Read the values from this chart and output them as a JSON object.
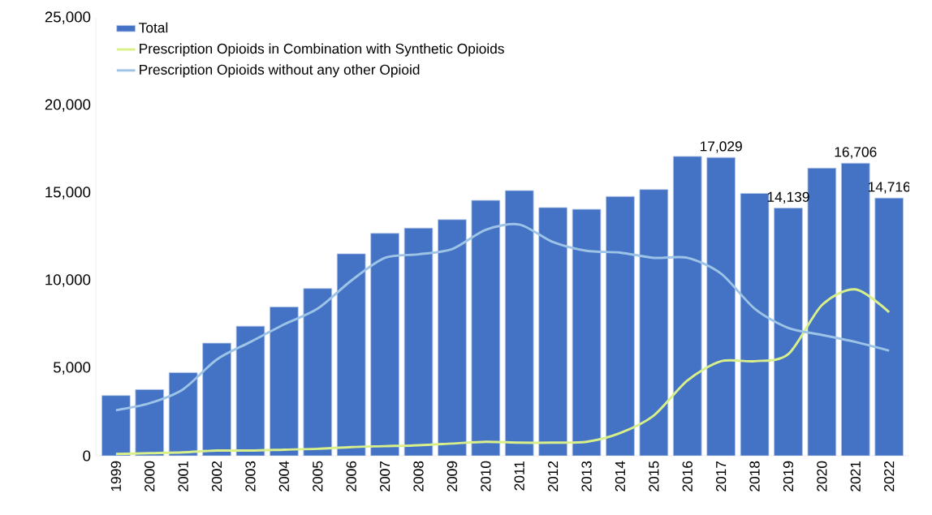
{
  "chart_data": {
    "type": "bar",
    "categories": [
      "1999",
      "2000",
      "2001",
      "2002",
      "2003",
      "2004",
      "2005",
      "2006",
      "2007",
      "2008",
      "2009",
      "2010",
      "2011",
      "2012",
      "2013",
      "2014",
      "2015",
      "2016",
      "2017",
      "2018",
      "2019",
      "2020",
      "2021",
      "2022"
    ],
    "series": [
      {
        "name": "Total",
        "color": "#4472c4",
        "values": [
          3440,
          3780,
          4750,
          6430,
          7400,
          8500,
          9550,
          11530,
          12700,
          13000,
          13480,
          14580,
          15140,
          14170,
          14070,
          14800,
          15200,
          17090,
          17029,
          14980,
          14139,
          16420,
          16706,
          14716
        ],
        "value_labels": [
          null,
          null,
          null,
          null,
          null,
          null,
          null,
          null,
          null,
          null,
          null,
          null,
          null,
          null,
          null,
          null,
          null,
          null,
          "17,029",
          null,
          "14,139",
          null,
          "16,706",
          "14,716"
        ]
      },
      {
        "name": "Prescription Opioids in Combination with Synthetic Opioids",
        "type": "line",
        "color": "#d9f08a",
        "values": [
          100,
          150,
          200,
          300,
          300,
          350,
          400,
          500,
          550,
          600,
          700,
          800,
          750,
          750,
          800,
          1300,
          2300,
          4300,
          5400,
          5400,
          5800,
          8600,
          9500,
          8200
        ]
      },
      {
        "name": "Prescription Opioids without any other Opioid",
        "type": "line",
        "color": "#9dc3e6",
        "values": [
          2600,
          3000,
          3800,
          5500,
          6500,
          7500,
          8400,
          10000,
          11300,
          11500,
          11800,
          12900,
          13200,
          12200,
          11700,
          11600,
          11300,
          11300,
          10400,
          8400,
          7300,
          6900,
          6500,
          6000
        ]
      }
    ],
    "ylim": [
      0,
      25000
    ],
    "yticks": [
      {
        "value": 0,
        "label": "0"
      },
      {
        "value": 5000,
        "label": "5,000"
      },
      {
        "value": 10000,
        "label": "10,000"
      },
      {
        "value": 15000,
        "label": "15,000"
      },
      {
        "value": 20000,
        "label": "20,000"
      },
      {
        "value": 25000,
        "label": "25,000"
      }
    ],
    "grid": false,
    "legend": "top left",
    "marker": "none",
    "line_style": "solid"
  }
}
